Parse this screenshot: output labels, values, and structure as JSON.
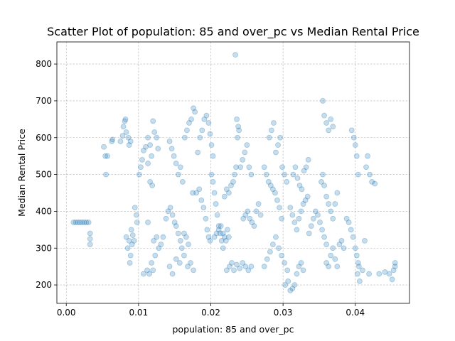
{
  "chart_data": {
    "type": "scatter",
    "title": "Scatter Plot of population: 85 and over_pc vs Median Rental Price",
    "xlabel": "population: 85 and over_pc",
    "ylabel": "Median Rental Price",
    "xlim": [
      -0.0013,
      0.0475
    ],
    "ylim": [
      150,
      860
    ],
    "xticks": [
      0.0,
      0.01,
      0.02,
      0.03,
      0.04
    ],
    "xtick_labels": [
      "0.00",
      "0.01",
      "0.02",
      "0.03",
      "0.04"
    ],
    "yticks": [
      200,
      300,
      400,
      500,
      600,
      700,
      800
    ],
    "ytick_labels": [
      "200",
      "300",
      "400",
      "500",
      "600",
      "700",
      "800"
    ],
    "grid": true,
    "marker_color": "#1f77b4",
    "marker_alpha": 0.25,
    "points": [
      [
        0.001,
        370
      ],
      [
        0.0013,
        370
      ],
      [
        0.0016,
        370
      ],
      [
        0.0019,
        370
      ],
      [
        0.0022,
        370
      ],
      [
        0.0025,
        370
      ],
      [
        0.0028,
        370
      ],
      [
        0.0031,
        370
      ],
      [
        0.0033,
        340
      ],
      [
        0.0033,
        310
      ],
      [
        0.0033,
        325
      ],
      [
        0.0052,
        575
      ],
      [
        0.0054,
        550
      ],
      [
        0.0055,
        500
      ],
      [
        0.0057,
        550
      ],
      [
        0.0063,
        590
      ],
      [
        0.0064,
        595
      ],
      [
        0.0075,
        590
      ],
      [
        0.0078,
        605
      ],
      [
        0.0079,
        630
      ],
      [
        0.0081,
        645
      ],
      [
        0.0082,
        650
      ],
      [
        0.0083,
        615
      ],
      [
        0.0086,
        600
      ],
      [
        0.0087,
        580
      ],
      [
        0.0089,
        590
      ],
      [
        0.0083,
        330
      ],
      [
        0.0085,
        300
      ],
      [
        0.0087,
        320
      ],
      [
        0.0088,
        260
      ],
      [
        0.0089,
        280
      ],
      [
        0.009,
        350
      ],
      [
        0.0091,
        310
      ],
      [
        0.0092,
        335
      ],
      [
        0.0094,
        320
      ],
      [
        0.0095,
        410
      ],
      [
        0.0097,
        390
      ],
      [
        0.0098,
        370
      ],
      [
        0.0101,
        500
      ],
      [
        0.0103,
        520
      ],
      [
        0.0105,
        540
      ],
      [
        0.0107,
        565
      ],
      [
        0.011,
        575
      ],
      [
        0.0113,
        600
      ],
      [
        0.0116,
        580
      ],
      [
        0.0118,
        550
      ],
      [
        0.012,
        645
      ],
      [
        0.0122,
        615
      ],
      [
        0.0125,
        600
      ],
      [
        0.0127,
        570
      ],
      [
        0.0119,
        470
      ],
      [
        0.0116,
        480
      ],
      [
        0.0113,
        530
      ],
      [
        0.0107,
        230
      ],
      [
        0.0112,
        240
      ],
      [
        0.0115,
        230
      ],
      [
        0.0118,
        260
      ],
      [
        0.012,
        240
      ],
      [
        0.0123,
        280
      ],
      [
        0.0113,
        370
      ],
      [
        0.0121,
        320
      ],
      [
        0.0125,
        330
      ],
      [
        0.0128,
        300
      ],
      [
        0.0131,
        310
      ],
      [
        0.0134,
        330
      ],
      [
        0.0138,
        380
      ],
      [
        0.0141,
        400
      ],
      [
        0.0144,
        410
      ],
      [
        0.0147,
        390
      ],
      [
        0.015,
        370
      ],
      [
        0.0152,
        360
      ],
      [
        0.0155,
        340
      ],
      [
        0.0158,
        320
      ],
      [
        0.016,
        300
      ],
      [
        0.0163,
        340
      ],
      [
        0.0166,
        330
      ],
      [
        0.0169,
        310
      ],
      [
        0.0143,
        590
      ],
      [
        0.0146,
        570
      ],
      [
        0.0149,
        550
      ],
      [
        0.0152,
        530
      ],
      [
        0.0155,
        500
      ],
      [
        0.0158,
        520
      ],
      [
        0.0161,
        480
      ],
      [
        0.0164,
        600
      ],
      [
        0.0167,
        620
      ],
      [
        0.017,
        640
      ],
      [
        0.0173,
        650
      ],
      [
        0.0176,
        680
      ],
      [
        0.0178,
        670
      ],
      [
        0.0143,
        250
      ],
      [
        0.0147,
        230
      ],
      [
        0.0152,
        270
      ],
      [
        0.0157,
        260
      ],
      [
        0.0163,
        280
      ],
      [
        0.0168,
        250
      ],
      [
        0.0172,
        260
      ],
      [
        0.0176,
        240
      ],
      [
        0.0175,
        450
      ],
      [
        0.018,
        450
      ],
      [
        0.0184,
        460
      ],
      [
        0.0187,
        430
      ],
      [
        0.019,
        410
      ],
      [
        0.0193,
        380
      ],
      [
        0.0195,
        350
      ],
      [
        0.0197,
        330
      ],
      [
        0.0199,
        320
      ],
      [
        0.0182,
        560
      ],
      [
        0.0185,
        600
      ],
      [
        0.0188,
        620
      ],
      [
        0.0191,
        650
      ],
      [
        0.0194,
        660
      ],
      [
        0.0197,
        640
      ],
      [
        0.0199,
        610
      ],
      [
        0.0201,
        580
      ],
      [
        0.0203,
        550
      ],
      [
        0.0201,
        500
      ],
      [
        0.0203,
        480
      ],
      [
        0.0205,
        450
      ],
      [
        0.0207,
        420
      ],
      [
        0.0209,
        390
      ],
      [
        0.0211,
        360
      ],
      [
        0.0213,
        340
      ],
      [
        0.0215,
        320
      ],
      [
        0.0217,
        300
      ],
      [
        0.0205,
        330
      ],
      [
        0.0208,
        340
      ],
      [
        0.0211,
        350
      ],
      [
        0.0214,
        360
      ],
      [
        0.0217,
        340
      ],
      [
        0.0219,
        330
      ],
      [
        0.0221,
        320
      ],
      [
        0.0223,
        350
      ],
      [
        0.0225,
        330
      ],
      [
        0.0219,
        440
      ],
      [
        0.0222,
        460
      ],
      [
        0.0225,
        450
      ],
      [
        0.0228,
        470
      ],
      [
        0.0231,
        480
      ],
      [
        0.0233,
        500
      ],
      [
        0.0235,
        520
      ],
      [
        0.0237,
        600
      ],
      [
        0.0239,
        620
      ],
      [
        0.0234,
        825
      ],
      [
        0.0236,
        650
      ],
      [
        0.0238,
        630
      ],
      [
        0.0241,
        520
      ],
      [
        0.0244,
        540
      ],
      [
        0.0247,
        560
      ],
      [
        0.025,
        580
      ],
      [
        0.0253,
        520
      ],
      [
        0.0256,
        500
      ],
      [
        0.0222,
        240
      ],
      [
        0.0226,
        250
      ],
      [
        0.0229,
        260
      ],
      [
        0.0232,
        240
      ],
      [
        0.0236,
        255
      ],
      [
        0.024,
        245
      ],
      [
        0.0244,
        260
      ],
      [
        0.0248,
        250
      ],
      [
        0.0252,
        240
      ],
      [
        0.0256,
        250
      ],
      [
        0.0245,
        380
      ],
      [
        0.0248,
        390
      ],
      [
        0.0251,
        400
      ],
      [
        0.0254,
        380
      ],
      [
        0.0257,
        370
      ],
      [
        0.026,
        360
      ],
      [
        0.0263,
        400
      ],
      [
        0.0266,
        420
      ],
      [
        0.0269,
        390
      ],
      [
        0.0274,
        520
      ],
      [
        0.0277,
        500
      ],
      [
        0.028,
        480
      ],
      [
        0.0283,
        470
      ],
      [
        0.0286,
        460
      ],
      [
        0.0289,
        450
      ],
      [
        0.0292,
        430
      ],
      [
        0.0295,
        410
      ],
      [
        0.0298,
        380
      ],
      [
        0.0281,
        600
      ],
      [
        0.0284,
        620
      ],
      [
        0.0287,
        640
      ],
      [
        0.029,
        560
      ],
      [
        0.0293,
        580
      ],
      [
        0.0296,
        600
      ],
      [
        0.0299,
        520
      ],
      [
        0.0302,
        500
      ],
      [
        0.0305,
        480
      ],
      [
        0.0274,
        250
      ],
      [
        0.0278,
        270
      ],
      [
        0.0282,
        290
      ],
      [
        0.0286,
        310
      ],
      [
        0.029,
        330
      ],
      [
        0.0294,
        300
      ],
      [
        0.0298,
        280
      ],
      [
        0.0302,
        260
      ],
      [
        0.0306,
        240
      ],
      [
        0.0303,
        200
      ],
      [
        0.0307,
        210
      ],
      [
        0.031,
        185
      ],
      [
        0.0313,
        190
      ],
      [
        0.0316,
        200
      ],
      [
        0.0319,
        230
      ],
      [
        0.0322,
        250
      ],
      [
        0.0325,
        260
      ],
      [
        0.0328,
        240
      ],
      [
        0.031,
        410
      ],
      [
        0.0313,
        390
      ],
      [
        0.0316,
        370
      ],
      [
        0.0319,
        350
      ],
      [
        0.0322,
        380
      ],
      [
        0.0325,
        400
      ],
      [
        0.0328,
        420
      ],
      [
        0.0331,
        430
      ],
      [
        0.0334,
        440
      ],
      [
        0.0314,
        500
      ],
      [
        0.0317,
        520
      ],
      [
        0.032,
        490
      ],
      [
        0.0323,
        470
      ],
      [
        0.0326,
        460
      ],
      [
        0.0329,
        510
      ],
      [
        0.0332,
        520
      ],
      [
        0.0335,
        540
      ],
      [
        0.0336,
        340
      ],
      [
        0.0339,
        360
      ],
      [
        0.0342,
        380
      ],
      [
        0.0345,
        400
      ],
      [
        0.0348,
        390
      ],
      [
        0.0351,
        370
      ],
      [
        0.0354,
        350
      ],
      [
        0.0357,
        330
      ],
      [
        0.036,
        310
      ],
      [
        0.0353,
        480
      ],
      [
        0.0355,
        500
      ],
      [
        0.0357,
        470
      ],
      [
        0.036,
        440
      ],
      [
        0.0363,
        420
      ],
      [
        0.0366,
        400
      ],
      [
        0.0369,
        380
      ],
      [
        0.0372,
        420
      ],
      [
        0.0375,
        450
      ],
      [
        0.0355,
        700
      ],
      [
        0.0357,
        660
      ],
      [
        0.036,
        640
      ],
      [
        0.0363,
        620
      ],
      [
        0.0366,
        650
      ],
      [
        0.0369,
        630
      ],
      [
        0.036,
        260
      ],
      [
        0.0363,
        250
      ],
      [
        0.0366,
        280
      ],
      [
        0.0369,
        300
      ],
      [
        0.0372,
        270
      ],
      [
        0.0375,
        250
      ],
      [
        0.0378,
        310
      ],
      [
        0.0381,
        320
      ],
      [
        0.0384,
        300
      ],
      [
        0.0388,
        380
      ],
      [
        0.0391,
        370
      ],
      [
        0.0394,
        350
      ],
      [
        0.0397,
        330
      ],
      [
        0.04,
        300
      ],
      [
        0.0402,
        280
      ],
      [
        0.0404,
        260
      ],
      [
        0.0395,
        620
      ],
      [
        0.0398,
        600
      ],
      [
        0.04,
        580
      ],
      [
        0.0402,
        550
      ],
      [
        0.0404,
        500
      ],
      [
        0.0403,
        230
      ],
      [
        0.0406,
        210
      ],
      [
        0.041,
        240
      ],
      [
        0.0413,
        320
      ],
      [
        0.0415,
        520
      ],
      [
        0.0417,
        550
      ],
      [
        0.042,
        500
      ],
      [
        0.0423,
        480
      ],
      [
        0.0427,
        475
      ],
      [
        0.0405,
        250
      ],
      [
        0.0419,
        230
      ],
      [
        0.0433,
        230
      ],
      [
        0.0441,
        235
      ],
      [
        0.0447,
        230
      ],
      [
        0.0451,
        215
      ],
      [
        0.0453,
        240
      ],
      [
        0.0455,
        250
      ],
      [
        0.0455,
        260
      ]
    ]
  }
}
